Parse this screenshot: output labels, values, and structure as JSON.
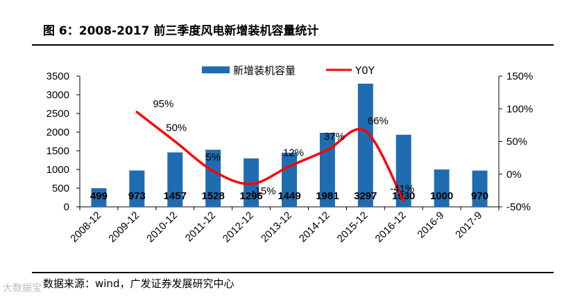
{
  "title": "图 6：2008-2017 前三季度风电新增装机容量统计",
  "source": "数据来源：wind，广发证券发展研究中心",
  "watermark": "大数据宝",
  "colors": {
    "bar": "#1f6cb0",
    "line": "#ff0000",
    "axis": "#000000"
  },
  "chart_data": {
    "type": "bar",
    "categories": [
      "2008-12",
      "2009-12",
      "2010-12",
      "2011-12",
      "2012-12",
      "2013-12",
      "2014-12",
      "2015-12",
      "2016-12",
      "2016-9",
      "2017-9"
    ],
    "series": [
      {
        "name": "新增装机容量",
        "type": "bar",
        "axis": "left",
        "values": [
          499,
          973,
          1457,
          1528,
          1296,
          1449,
          1981,
          3297,
          1930,
          1000,
          970
        ],
        "labels": [
          "499",
          "973",
          "1457",
          "1528",
          "1296",
          "1449",
          "1981",
          "3297",
          "1930",
          "1000",
          "970"
        ]
      },
      {
        "name": "Y0Y",
        "type": "line",
        "axis": "right",
        "values": [
          null,
          95,
          50,
          5,
          -15,
          12,
          37,
          66,
          -41,
          null,
          null
        ],
        "labels": [
          null,
          "95%",
          "50%",
          "5%",
          "-15%",
          "12%",
          "37%",
          "66%",
          "-41%",
          null,
          null
        ]
      }
    ],
    "y_left": {
      "ylim": [
        0,
        3500
      ],
      "ticks": [
        "0",
        "500",
        "1000",
        "1500",
        "2000",
        "2500",
        "3000",
        "3500"
      ]
    },
    "y_right": {
      "ylim": [
        -50,
        150
      ],
      "ticks": [
        "-50%",
        "0%",
        "50%",
        "100%",
        "150%"
      ]
    },
    "legend": "top-center",
    "grid": false
  }
}
